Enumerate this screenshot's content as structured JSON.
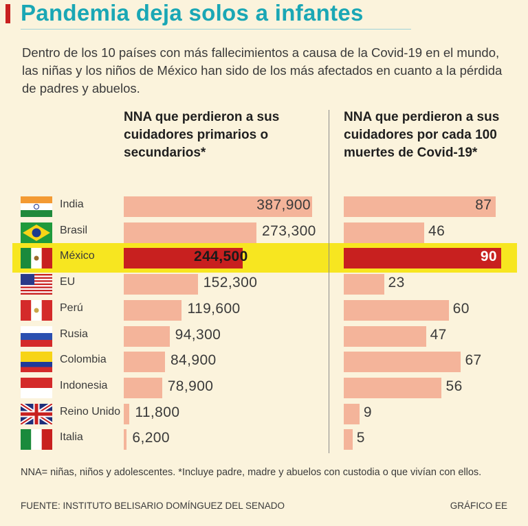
{
  "title": "Pandemia deja solos a infantes",
  "intro": "Dentro de los 10 países con más fallecimientos a causa de la Covid-19 en el mundo, las niñas y los niños de México han sido de los más afectados en cuanto a la pérdida de padres y abuelos.",
  "left_heading": "NNA que perdieron a sus cuidadores primarios o secundarios*",
  "right_heading": "NNA que perdieron a sus cuidadores por cada 100 muertes de Covid-19*",
  "footnote": "NNA= niñas, niños y adolescentes. *Incluye padre, madre y abuelos con custodia o que vivían con ellos.",
  "source": "FUENTE: INSTITUTO BELISARIO DOMÍNGUEZ DEL SENADO",
  "credit": "GRÁFICO EE",
  "colors": {
    "bar": "#f4b49a",
    "highlight_bar": "#c8201f",
    "highlight_band": "#f7e620",
    "title": "#1aa7b5"
  },
  "chart_data": [
    {
      "type": "bar",
      "orientation": "horizontal",
      "title": "NNA que perdieron a sus cuidadores primarios o secundarios*",
      "categories": [
        "India",
        "Brasil",
        "México",
        "EU",
        "Perú",
        "Rusia",
        "Colombia",
        "Indonesia",
        "Reino Unido",
        "Italia"
      ],
      "values": [
        387900,
        273300,
        244500,
        152300,
        119600,
        94300,
        84900,
        78900,
        11800,
        6200
      ],
      "labels": [
        "387,900",
        "273,300",
        "244,500",
        "152,300",
        "119,600",
        "94,300",
        "84,900",
        "78,900",
        "11,800",
        "6,200"
      ],
      "highlight": "México",
      "xlim": [
        0,
        387900
      ]
    },
    {
      "type": "bar",
      "orientation": "horizontal",
      "title": "NNA que perdieron a sus cuidadores por cada 100 muertes de Covid-19*",
      "categories": [
        "India",
        "Brasil",
        "México",
        "EU",
        "Perú",
        "Rusia",
        "Colombia",
        "Indonesia",
        "Reino Unido",
        "Italia"
      ],
      "values": [
        87,
        46,
        90,
        23,
        60,
        47,
        67,
        56,
        9,
        5
      ],
      "labels": [
        "87",
        "46",
        "90",
        "23",
        "60",
        "47",
        "67",
        "56",
        "9",
        "5"
      ],
      "highlight": "México",
      "xlim": [
        0,
        90
      ]
    }
  ]
}
